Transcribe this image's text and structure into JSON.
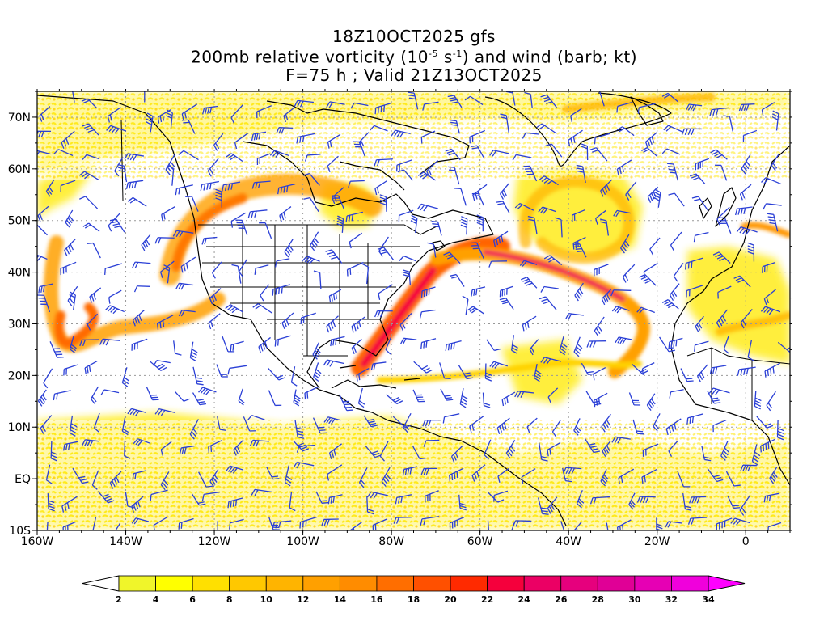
{
  "title": {
    "line1": "18Z10OCT2025 gfs",
    "line2_pre": "200mb relative vorticity (10",
    "line2_exp1": "-5",
    "line2_mid": " s",
    "line2_exp2": "-1",
    "line2_post": ") and wind (barb; kt)",
    "line3": "F=75 h ; Valid 21Z13OCT2025"
  },
  "map": {
    "lon_range": [
      -160,
      10
    ],
    "lat_range": [
      -10,
      75
    ],
    "x_ticks": [
      "160W",
      "140W",
      "120W",
      "100W",
      "80W",
      "60W",
      "40W",
      "20W",
      "0"
    ],
    "y_ticks": [
      "10S",
      "EQ",
      "10N",
      "20N",
      "30N",
      "40N",
      "50N",
      "60N",
      "70N"
    ],
    "barb_color": "#2a3fd6",
    "coast_color": "#000000"
  },
  "colorbar": {
    "labels": [
      "2",
      "4",
      "6",
      "8",
      "10",
      "12",
      "14",
      "16",
      "18",
      "20",
      "22",
      "24",
      "26",
      "28",
      "30",
      "32",
      "34"
    ],
    "colors": [
      "#f0f52a",
      "#ffff00",
      "#ffe000",
      "#ffc800",
      "#ffb400",
      "#ffa000",
      "#ff8c00",
      "#ff6e00",
      "#ff5000",
      "#ff2a00",
      "#f5003c",
      "#eb0064",
      "#e6007d",
      "#e00096",
      "#e600b4",
      "#f000dc"
    ],
    "over_color": "#ff00ff",
    "under_color": "#ffffff"
  }
}
